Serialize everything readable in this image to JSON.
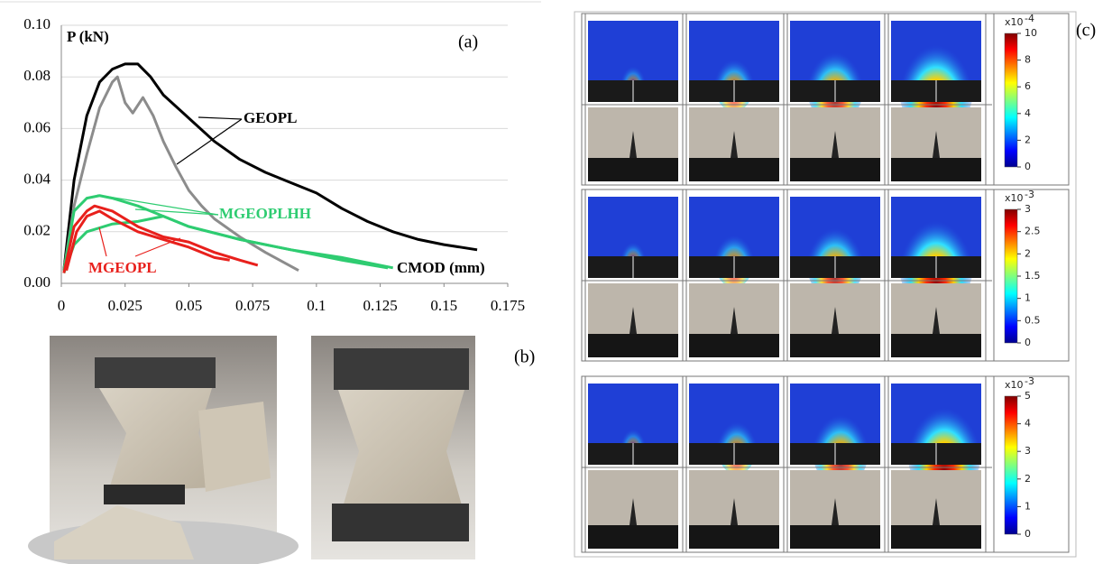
{
  "chart_data": {
    "type": "line",
    "panel_label": "(a)",
    "y_label": "P (kN)",
    "x_label": "CMOD (mm)",
    "xlim": [
      0,
      0.175
    ],
    "ylim": [
      0,
      0.1
    ],
    "xticks": [
      0,
      0.025,
      0.05,
      0.075,
      0.1,
      0.125,
      0.15,
      0.175
    ],
    "yticks": [
      {
        "value": 0,
        "label": "0.00"
      },
      {
        "value": 0.02,
        "label": "0.02"
      },
      {
        "value": 0.04,
        "label": "0.04"
      },
      {
        "value": 0.06,
        "label": "0.06"
      },
      {
        "value": 0.08,
        "label": "0.08"
      },
      {
        "value": 0.1,
        "label": "0.10"
      }
    ],
    "grid": true,
    "annotations": [
      "GEOPL",
      "MGEOPLHH",
      "MGEOPL"
    ],
    "series": [
      {
        "color": "#000000",
        "x": [
          0.001,
          0.005,
          0.01,
          0.015,
          0.02,
          0.025,
          0.03,
          0.035,
          0.04,
          0.05,
          0.06,
          0.07,
          0.08,
          0.09,
          0.1,
          0.11,
          0.12,
          0.13,
          0.14,
          0.15,
          0.163
        ],
        "values": [
          0.005,
          0.04,
          0.065,
          0.078,
          0.083,
          0.085,
          0.085,
          0.08,
          0.073,
          0.064,
          0.055,
          0.048,
          0.043,
          0.039,
          0.035,
          0.029,
          0.024,
          0.02,
          0.017,
          0.015,
          0.013
        ]
      },
      {
        "color": "#8c8c8c",
        "x": [
          0.001,
          0.005,
          0.01,
          0.015,
          0.02,
          0.022,
          0.025,
          0.028,
          0.032,
          0.036,
          0.04,
          0.045,
          0.05,
          0.055,
          0.06,
          0.07,
          0.08,
          0.093
        ],
        "values": [
          0.005,
          0.03,
          0.05,
          0.068,
          0.078,
          0.08,
          0.07,
          0.066,
          0.072,
          0.065,
          0.055,
          0.045,
          0.036,
          0.03,
          0.025,
          0.018,
          0.012,
          0.005
        ]
      },
      {
        "color": "#2ecc71",
        "x": [
          0.001,
          0.005,
          0.01,
          0.015,
          0.02,
          0.03,
          0.04,
          0.05,
          0.07,
          0.09,
          0.11,
          0.13
        ],
        "values": [
          0.005,
          0.028,
          0.033,
          0.034,
          0.033,
          0.03,
          0.026,
          0.022,
          0.017,
          0.013,
          0.01,
          0.006
        ]
      },
      {
        "color": "#2ecc71",
        "x": [
          0.001,
          0.005,
          0.01,
          0.02,
          0.03,
          0.04,
          0.05,
          0.07,
          0.09,
          0.11,
          0.128
        ],
        "values": [
          0.004,
          0.015,
          0.02,
          0.023,
          0.024,
          0.026,
          0.022,
          0.017,
          0.013,
          0.009,
          0.006
        ]
      },
      {
        "color": "#e8201c",
        "x": [
          0.001,
          0.005,
          0.01,
          0.013,
          0.02,
          0.03,
          0.04,
          0.05,
          0.06,
          0.07,
          0.077
        ],
        "values": [
          0.004,
          0.022,
          0.028,
          0.03,
          0.028,
          0.022,
          0.018,
          0.016,
          0.012,
          0.009,
          0.007
        ]
      },
      {
        "color": "#e8201c",
        "x": [
          0.002,
          0.006,
          0.01,
          0.015,
          0.02,
          0.03,
          0.04,
          0.05,
          0.06,
          0.066
        ],
        "values": [
          0.005,
          0.02,
          0.026,
          0.028,
          0.025,
          0.02,
          0.017,
          0.014,
          0.01,
          0.009
        ]
      }
    ]
  },
  "panel_b": {
    "label": "(b)"
  },
  "panel_c": {
    "label": "(c)",
    "colorbars": [
      {
        "base": "x10",
        "exponent": "-4",
        "ticks": [
          "10",
          "8",
          "6",
          "4",
          "2",
          "0"
        ]
      },
      {
        "base": "x10",
        "exponent": "-3",
        "ticks": [
          "3",
          "2.5",
          "2",
          "1.5",
          "1",
          "0.5",
          "0"
        ]
      },
      {
        "base": "x10",
        "exponent": "-3",
        "ticks": [
          "5",
          "4",
          "3",
          "2",
          "1",
          "0"
        ]
      }
    ]
  }
}
